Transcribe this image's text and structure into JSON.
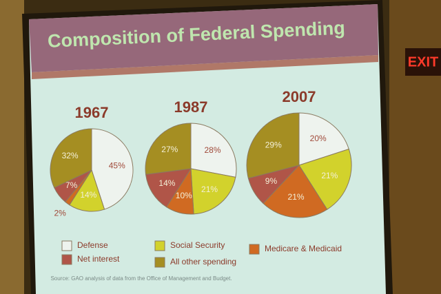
{
  "title": "Composition of Federal Spending",
  "source": "Source: GAO analysis of data from the Office of Management and Budget.",
  "exit_sign": "EXIT",
  "legend": {
    "categories": [
      "Defense",
      "Social Security",
      "Medicare & Medicaid",
      "Net interest",
      "All other spending"
    ],
    "colors": [
      "#eef3ee",
      "#d2d22c",
      "#d06a22",
      "#b05548",
      "#a58e22"
    ]
  },
  "chart_data": [
    {
      "type": "pie",
      "title": "1967",
      "values": [
        45,
        14,
        2,
        7,
        32
      ],
      "value_labels": [
        "45%",
        "14%",
        "2%",
        "7%",
        "32%"
      ]
    },
    {
      "type": "pie",
      "title": "1987",
      "values": [
        28,
        21,
        10,
        14,
        27
      ],
      "value_labels": [
        "28%",
        "21%",
        "10%",
        "14%",
        "27%"
      ]
    },
    {
      "type": "pie",
      "title": "2007",
      "values": [
        20,
        21,
        21,
        9,
        29
      ],
      "value_labels": [
        "20%",
        "21%",
        "21%",
        "9%",
        "29%"
      ]
    }
  ]
}
